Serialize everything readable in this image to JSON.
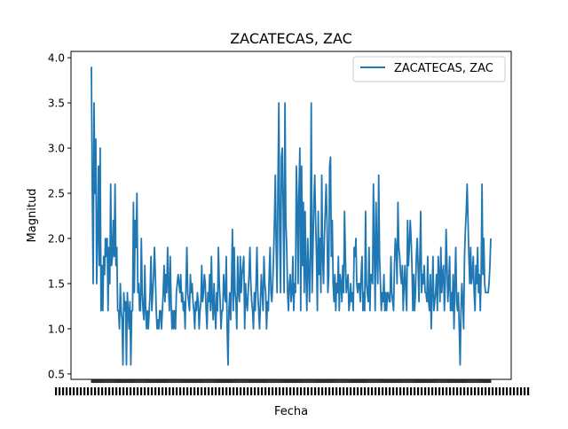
{
  "chart_data": {
    "type": "line",
    "title": "ZACATECAS, ZAC",
    "xlabel": "Fecha",
    "ylabel": "Magnitud",
    "ylim": [
      0.44,
      4.07
    ],
    "yticks": [
      0.5,
      1.0,
      1.5,
      2.0,
      2.5,
      3.0,
      3.5,
      4.0
    ],
    "yticklabels": [
      "0.5",
      "1.0",
      "1.5",
      "2.0",
      "2.5",
      "3.0",
      "3.5",
      "4.0"
    ],
    "x_note": "x tick labels are dense overlapping date strings and are unreadable",
    "grid": false,
    "legend_position": "top-right",
    "series": [
      {
        "name": "ZACATECAS, ZAC",
        "color": "#1f77b4",
        "values": [
          3.9,
          2.5,
          1.5,
          3.5,
          2.5,
          3.1,
          1.5,
          2.0,
          2.8,
          1.7,
          3.0,
          1.2,
          1.7,
          1.2,
          1.8,
          1.6,
          2.0,
          1.8,
          2.0,
          1.2,
          1.9,
          1.5,
          2.6,
          1.7,
          1.8,
          2.2,
          1.8,
          2.6,
          1.7,
          1.9,
          1.2,
          1.2,
          1.0,
          1.5,
          1.2,
          1.1,
          0.6,
          1.4,
          1.2,
          1.3,
          0.6,
          1.4,
          1.2,
          1.0,
          1.3,
          0.6,
          1.2,
          1.2,
          2.4,
          1.4,
          2.2,
          1.9,
          2.5,
          1.4,
          1.5,
          1.2,
          1.2,
          2.0,
          1.4,
          1.2,
          1.1,
          1.7,
          1.2,
          1.0,
          1.2,
          1.0,
          1.2,
          1.4,
          1.8,
          1.2,
          1.4,
          1.6,
          1.9,
          1.6,
          1.2,
          1.0,
          1.1,
          1.0,
          1.2,
          1.2,
          1.0,
          1.2,
          1.4,
          1.7,
          1.3,
          1.6,
          1.4,
          1.9,
          1.5,
          1.2,
          1.8,
          1.3,
          1.0,
          1.2,
          1.0,
          1.2,
          1.0,
          1.4,
          1.5,
          1.6,
          1.5,
          1.4,
          1.6,
          1.3,
          1.4,
          1.2,
          1.3,
          1.0,
          1.5,
          1.9,
          1.4,
          1.3,
          1.2,
          1.6,
          1.4,
          1.5,
          1.3,
          1.2,
          1.0,
          1.3,
          1.2,
          1.4,
          1.3,
          1.0,
          1.2,
          1.3,
          1.7,
          1.3,
          1.4,
          1.6,
          1.5,
          1.2,
          1.0,
          1.4,
          1.3,
          1.6,
          1.2,
          1.8,
          1.3,
          1.1,
          1.5,
          1.2,
          1.0,
          1.4,
          1.2,
          1.9,
          1.5,
          1.3,
          1.0,
          1.2,
          1.2,
          1.6,
          1.4,
          1.3,
          1.8,
          1.0,
          0.6,
          1.2,
          1.4,
          1.1,
          1.5,
          2.1,
          1.2,
          1.9,
          1.4,
          1.3,
          1.0,
          1.8,
          1.4,
          1.3,
          1.8,
          1.4,
          1.6,
          1.7,
          1.8,
          1.0,
          1.5,
          1.3,
          1.2,
          1.4,
          1.6,
          1.9,
          1.5,
          1.3,
          1.2,
          1.0,
          1.4,
          1.2,
          1.5,
          1.9,
          1.4,
          1.2,
          1.0,
          1.3,
          1.6,
          1.4,
          1.2,
          1.8,
          1.5,
          1.4,
          1.0,
          1.3,
          1.2,
          1.6,
          1.9,
          1.4,
          1.3,
          1.5,
          1.8,
          2.2,
          2.7,
          1.9,
          1.4,
          2.6,
          3.5,
          2.0,
          1.4,
          2.9,
          3.0,
          2.3,
          1.4,
          3.5,
          2.2,
          1.9,
          1.4,
          1.2,
          1.5,
          1.6,
          1.3,
          1.4,
          1.8,
          1.2,
          1.5,
          1.4,
          2.8,
          2.4,
          1.5,
          2.5,
          3.0,
          1.2,
          2.8,
          1.7,
          2.4,
          1.4,
          2.3,
          1.6,
          1.2,
          2.0,
          1.7,
          1.3,
          1.8,
          3.5,
          1.4,
          1.9,
          2.4,
          2.7,
          2.2,
          1.8,
          1.2,
          2.3,
          1.6,
          2.0,
          1.4,
          2.7,
          1.8,
          1.5,
          2.0,
          2.3,
          2.6,
          2.2,
          1.4,
          1.6,
          2.8,
          2.9,
          1.8,
          2.2,
          1.5,
          1.3,
          1.6,
          1.2,
          1.5,
          1.4,
          1.8,
          1.2,
          1.6,
          1.5,
          1.3,
          1.7,
          1.4,
          2.3,
          1.8,
          1.4,
          1.5,
          1.6,
          1.2,
          1.3,
          1.5,
          1.3,
          1.4,
          1.2,
          1.9,
          1.8,
          2.0,
          1.5,
          1.4,
          1.5,
          1.5,
          1.3,
          1.6,
          1.8,
          1.2,
          1.4,
          1.2,
          2.3,
          1.5,
          1.4,
          1.3,
          1.9,
          1.2,
          1.6,
          1.6,
          1.5,
          2.6,
          1.9,
          1.2,
          2.4,
          1.8,
          1.5,
          2.7,
          1.8,
          1.5,
          1.2,
          1.4,
          1.3,
          1.6,
          1.2,
          1.4,
          1.2,
          1.4,
          1.4,
          1.3,
          1.3,
          1.8,
          1.4,
          1.3,
          1.2,
          1.7,
          2.0,
          1.9,
          1.5,
          2.4,
          1.9,
          1.8,
          1.6,
          1.5,
          1.7,
          1.2,
          1.5,
          1.7,
          1.4,
          1.2,
          2.2,
          1.7,
          1.9,
          2.2,
          2.0,
          1.7,
          1.2,
          1.6,
          1.2,
          1.4,
          1.8,
          2.0,
          1.7,
          1.3,
          1.8,
          2.3,
          1.4,
          1.6,
          1.5,
          1.7,
          1.4,
          1.4,
          1.3,
          1.8,
          1.3,
          1.2,
          1.6,
          1.0,
          1.4,
          1.8,
          1.2,
          1.3,
          1.4,
          1.6,
          1.2,
          1.8,
          1.6,
          1.3,
          1.9,
          1.4,
          1.6,
          1.7,
          1.2,
          1.5,
          2.1,
          1.7,
          1.3,
          1.5,
          1.8,
          1.2,
          1.4,
          1.2,
          1.6,
          1.0,
          1.5,
          1.9,
          1.3,
          1.2,
          1.4,
          1.0,
          0.6,
          1.2,
          1.5,
          1.3,
          1.0,
          1.8,
          2.1,
          2.3,
          2.6,
          2.2,
          1.8,
          1.5,
          1.9,
          1.5,
          1.6,
          1.8,
          1.4,
          1.2,
          1.7,
          1.5,
          1.9,
          1.4,
          1.6,
          1.2,
          1.6,
          2.6,
          1.6,
          2.0,
          1.5,
          1.4,
          1.4,
          1.4,
          1.4,
          1.5,
          1.7,
          2.0
        ]
      }
    ]
  }
}
